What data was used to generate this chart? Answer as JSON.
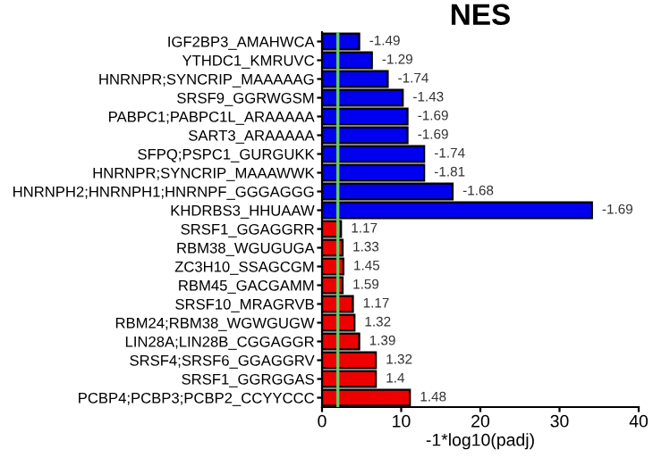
{
  "chart_data": {
    "type": "bar",
    "orientation": "horizontal",
    "title": "NES",
    "xlabel": "-1*log10(padj)",
    "categories": [
      "IGF2BP3_AMAHWCA",
      "YTHDC1_KMRUVC",
      "HNRNPR;SYNCRIP_MAAAAAG",
      "SRSF9_GGRWGSM",
      "PABPC1;PABPC1L_ARAAAAA",
      "SART3_ARAAAAA",
      "SFPQ;PSPC1_GURGUKK",
      "HNRNPR;SYNCRIP_MAAAWWK",
      "HNRNPH2;HNRNPH1;HNRNPF_GGGAGGG",
      "KHDRBS3_HHUAAW",
      "SRSF1_GGAGGRR",
      "RBM38_WGUGUGA",
      "ZC3H10_SSAGCGM",
      "RBM45_GACGAMM",
      "SRSF10_MRAGRVB",
      "RBM24;RBM38_WGWGUGW",
      "LIN28A;LIN28B_CGGAGGR",
      "SRSF4;SRSF6_GGAGGRV",
      "SRSF1_GGRGGAS",
      "PCBP4;PCBP3;PCBP2_CCYYCCC"
    ],
    "values": [
      4.7,
      6.3,
      8.3,
      10.2,
      10.8,
      10.8,
      12.9,
      12.9,
      16.5,
      34.1,
      2.4,
      2.6,
      2.7,
      2.6,
      3.9,
      4.1,
      4.7,
      6.8,
      6.8,
      11.1
    ],
    "colors": [
      "#0000ee",
      "#0000ee",
      "#0000ee",
      "#0000ee",
      "#0000ee",
      "#0000ee",
      "#0000ee",
      "#0000ee",
      "#0000ee",
      "#0000ee",
      "#ee0000",
      "#ee0000",
      "#ee0000",
      "#ee0000",
      "#ee0000",
      "#ee0000",
      "#ee0000",
      "#ee0000",
      "#ee0000",
      "#ee0000"
    ],
    "annotations": [
      {
        "text": "-1.49",
        "x": 4.7,
        "y": "IGF2BP3_AMAHWCA"
      },
      {
        "text": "-1.29",
        "x": 6.3,
        "y": "YTHDC1_KMRUVC"
      },
      {
        "text": "-1.74",
        "x": 8.3,
        "y": "HNRNPR;SYNCRIP_MAAAAAG"
      },
      {
        "text": "-1.43",
        "x": 10.2,
        "y": "SRSF9_GGRWGSM"
      },
      {
        "text": "-1.69",
        "x": 10.8,
        "y": "PABPC1;PABPC1L_ARAAAAA"
      },
      {
        "text": "-1.69",
        "x": 10.8,
        "y": "SART3_ARAAAAA"
      },
      {
        "text": "-1.74",
        "x": 12.9,
        "y": "SFPQ;PSPC1_GURGUKK"
      },
      {
        "text": "-1.81",
        "x": 12.9,
        "y": "HNRNPR;SYNCRIP_MAAAWWK"
      },
      {
        "text": "-1.68",
        "x": 16.5,
        "y": "HNRNPH2;HNRNPH1;HNRNPF_GGGAGGG"
      },
      {
        "text": "-1.69",
        "x": 34.1,
        "y": "KHDRBS3_HHUAAW"
      },
      {
        "text": "1.17",
        "x": 2.4,
        "y": "SRSF1_GGAGGRR"
      },
      {
        "text": "1.33",
        "x": 2.6,
        "y": "RBM38_WGUGUGA"
      },
      {
        "text": "1.45",
        "x": 2.7,
        "y": "ZC3H10_SSAGCGM"
      },
      {
        "text": "1.59",
        "x": 2.6,
        "y": "RBM45_GACGAMM"
      },
      {
        "text": "1.17",
        "x": 3.9,
        "y": "SRSF10_MRAGRVB"
      },
      {
        "text": "1.32",
        "x": 4.1,
        "y": "RBM24;RBM38_WGWGUGW"
      },
      {
        "text": "1.39",
        "x": 4.7,
        "y": "LIN28A;LIN28B_CGGAGGR"
      },
      {
        "text": "1.32",
        "x": 6.8,
        "y": "SRSF4;SRSF6_GGAGGRV"
      },
      {
        "text": "1.4",
        "x": 6.8,
        "y": "SRSF1_GGRGGAS"
      },
      {
        "text": "1.48",
        "x": 11.1,
        "y": "PCBP4;PCBP3;PCBP2_CCYYCCC"
      }
    ],
    "xlim": [
      0,
      40
    ],
    "xticks": [
      0,
      10,
      20,
      30,
      40
    ],
    "grid": false,
    "legend": false,
    "ref_lines": [
      {
        "axis": "x",
        "value": 2,
        "color": "#66cc66"
      }
    ]
  }
}
